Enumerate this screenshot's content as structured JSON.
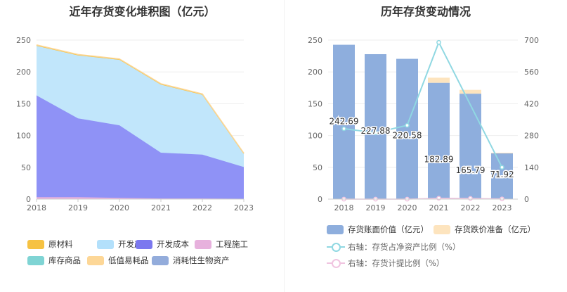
{
  "left_chart": {
    "title": "近年存货变化堆积图（亿元）",
    "legend": [
      {
        "label": "原材料",
        "color": "#f6c242"
      },
      {
        "label": "开发产品",
        "color": "#b3e0fb"
      },
      {
        "label": "开发成本",
        "color": "#7b78ef"
      },
      {
        "label": "工程施工",
        "color": "#e7b1dd"
      },
      {
        "label": "库存商品",
        "color": "#7fd4d4"
      },
      {
        "label": "低值易耗品",
        "color": "#fdd797"
      },
      {
        "label": "消耗性生物资产",
        "color": "#93acdb"
      }
    ]
  },
  "right_chart": {
    "title": "历年存货变动情况",
    "legend": [
      {
        "label": "存货账面价值（亿元）",
        "color": "#8eaedd",
        "kind": "bar"
      },
      {
        "label": "存货跌价准备（亿元）",
        "color": "#fde4be",
        "kind": "bar"
      },
      {
        "label": "右轴：存货占净资产比例（%）",
        "color": "#90d8e2",
        "kind": "line"
      },
      {
        "label": "右轴：存货计提比例（%）",
        "color": "#f0c4e0",
        "kind": "line"
      }
    ]
  },
  "chart_data": [
    {
      "type": "area",
      "title": "近年存货变化堆积图（亿元）",
      "stacked": true,
      "x": [
        "2018",
        "2019",
        "2020",
        "2021",
        "2022",
        "2023"
      ],
      "ylim": [
        0,
        250
      ],
      "yticks": [
        0,
        50,
        100,
        150,
        200,
        250
      ],
      "series": [
        {
          "name": "工程施工",
          "color": "#e7b1dd",
          "values": [
            3,
            3,
            2,
            1,
            1,
            0.5
          ]
        },
        {
          "name": "开发成本",
          "color": "#8f92f6",
          "values": [
            160,
            124,
            114,
            72,
            69,
            50
          ]
        },
        {
          "name": "开发产品",
          "color": "#c1e6fb",
          "values": [
            78,
            99,
            103,
            107,
            94,
            21
          ]
        },
        {
          "name": "原材料",
          "color": "#f6c242",
          "values": [
            1,
            1,
            1,
            1,
            1,
            0.5
          ]
        },
        {
          "name": "低值易耗品",
          "color": "#fdd797",
          "values": [
            0.5,
            0.5,
            0.5,
            0.5,
            0.5,
            0.2
          ]
        }
      ],
      "grid": true
    },
    {
      "type": "bar",
      "title": "历年存货变动情况",
      "categories": [
        "2018",
        "2019",
        "2020",
        "2021",
        "2022",
        "2023"
      ],
      "ylim": [
        0,
        250
      ],
      "yticks": [
        0,
        50,
        100,
        150,
        200,
        250
      ],
      "y2lim": [
        0,
        700
      ],
      "y2ticks": [
        0,
        140,
        280,
        420,
        560,
        700
      ],
      "series": [
        {
          "name": "存货账面价值（亿元）",
          "axis": "left",
          "kind": "bar",
          "color": "#8eaedd",
          "values": [
            242.69,
            227.88,
            220.58,
            182.89,
            165.79,
            71.92
          ],
          "labels": [
            "242.69",
            "227.88",
            "220.58",
            "182.89",
            "165.79",
            "71.92"
          ]
        },
        {
          "name": "存货跌价准备（亿元）",
          "axis": "left",
          "kind": "bar-stack",
          "color": "#fde4be",
          "values": [
            0,
            0,
            0,
            8,
            6,
            1
          ]
        },
        {
          "name": "右轴：存货占净资产比例（%）",
          "axis": "right",
          "kind": "line",
          "color": "#90d8e2",
          "values": [
            310,
            292,
            325,
            690,
            null,
            140
          ]
        },
        {
          "name": "右轴：存货计提比例（%）",
          "axis": "right",
          "kind": "line",
          "color": "#f0c4e0",
          "values": [
            0,
            0,
            0,
            4,
            3,
            1
          ]
        }
      ],
      "grid": true
    }
  ]
}
